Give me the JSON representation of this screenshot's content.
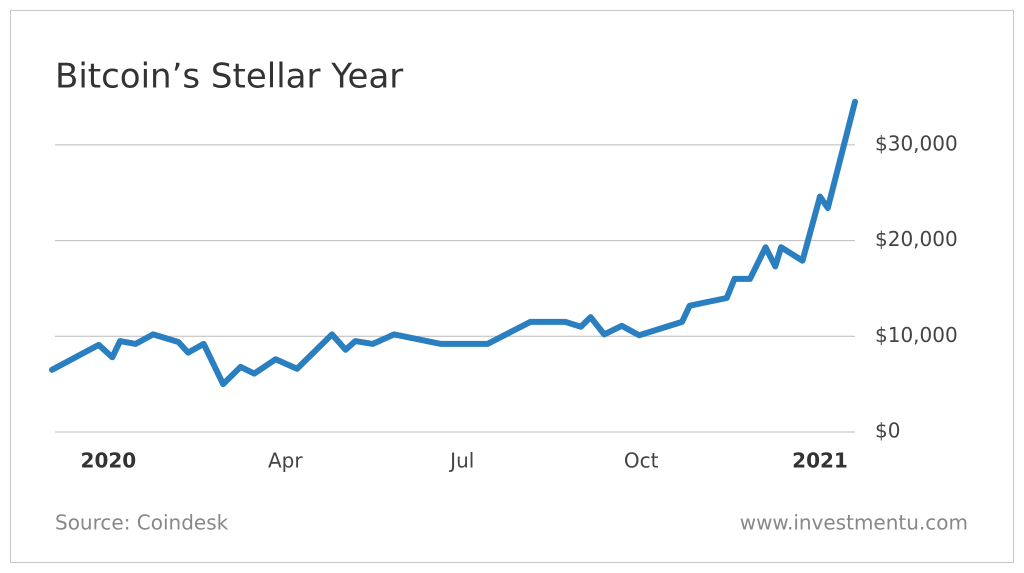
{
  "chart_data": {
    "type": "line",
    "title": "Bitcoin’s Stellar Year",
    "source": "Source: Coindesk",
    "website": "www.investmentu.com",
    "series": [
      {
        "color": "#2a7fc1",
        "x": [
          -29,
          -5,
          2,
          6,
          14,
          23,
          36,
          41,
          49,
          59,
          68,
          75,
          86,
          97,
          115,
          122,
          127,
          136,
          147,
          171,
          195,
          217,
          235,
          243,
          248,
          255,
          264,
          273,
          295,
          299,
          318,
          322,
          330,
          338,
          343,
          346,
          357,
          366,
          370,
          384
        ],
        "values": [
          6500,
          9100,
          7800,
          9500,
          9200,
          10200,
          9400,
          8300,
          9200,
          5000,
          6800,
          6100,
          7600,
          6600,
          10200,
          8600,
          9500,
          9200,
          10200,
          9200,
          9200,
          11500,
          11500,
          11000,
          12000,
          10200,
          11100,
          10100,
          11500,
          13200,
          14000,
          16000,
          16000,
          19300,
          17300,
          19300,
          17900,
          24600,
          23400,
          34500
        ]
      }
    ],
    "xlim": [
      -29,
      384
    ],
    "xticks": [
      {
        "value": 0,
        "label": "2020"
      },
      {
        "value": 91,
        "label": "Apr"
      },
      {
        "value": 182,
        "label": "Jul"
      },
      {
        "value": 274,
        "label": "Oct"
      },
      {
        "value": 366,
        "label": "2021"
      }
    ],
    "ylim": [
      0,
      35000
    ],
    "yticks": [
      {
        "value": 0,
        "label": "$0"
      },
      {
        "value": 10000,
        "label": "$10,000"
      },
      {
        "value": 20000,
        "label": "$20,000"
      },
      {
        "value": 30000,
        "label": "$30,000"
      }
    ],
    "grid": true
  }
}
